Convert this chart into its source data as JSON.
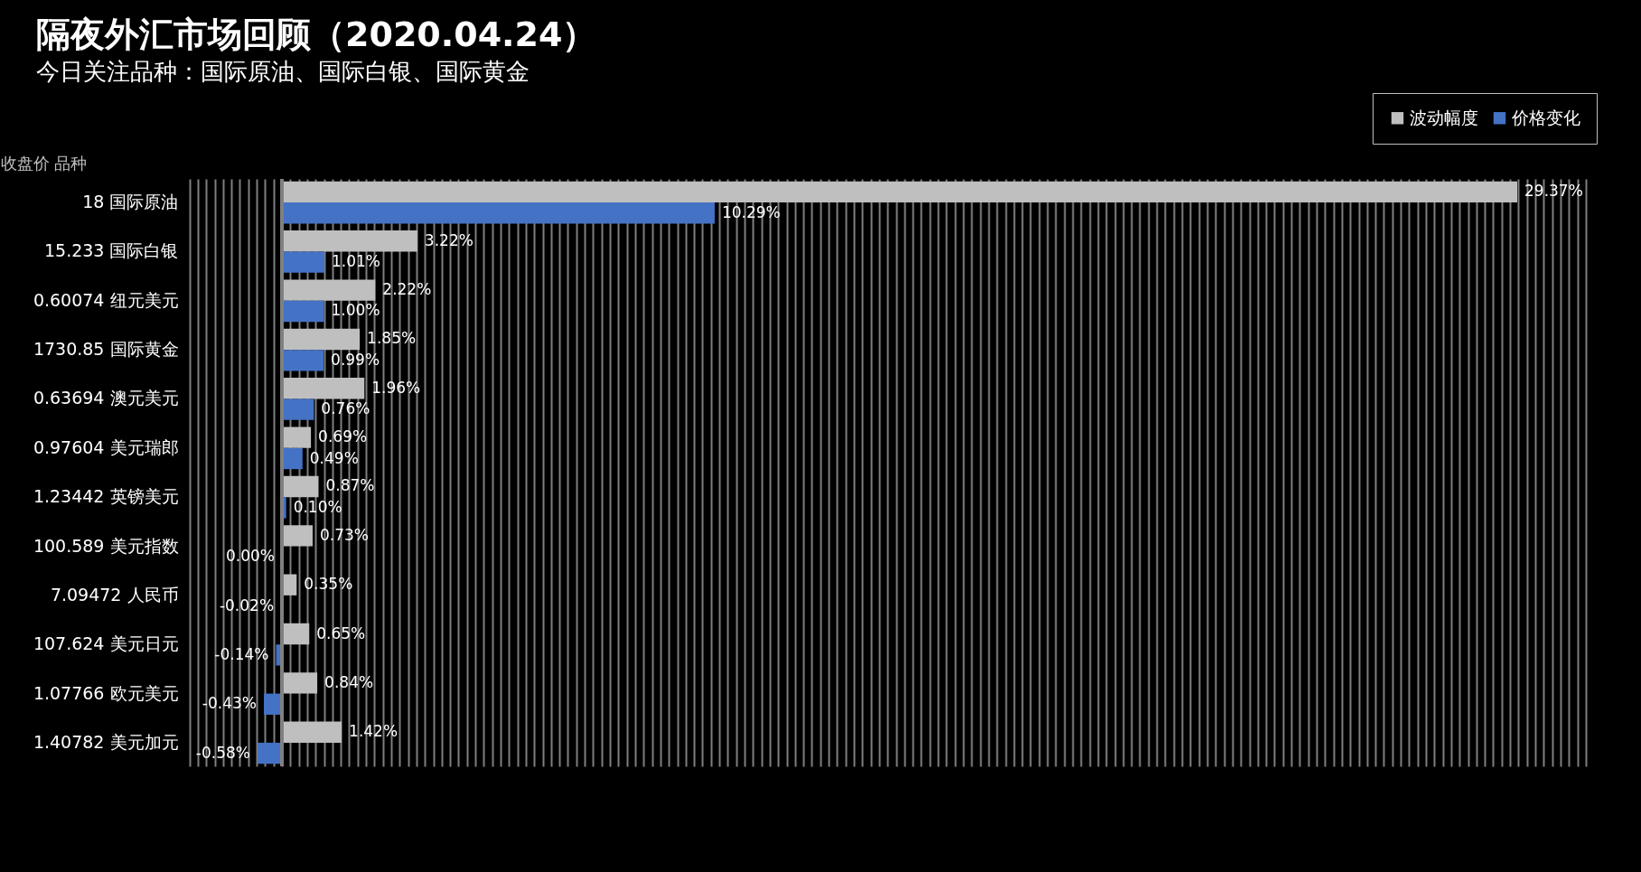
{
  "chart_data": {
    "type": "bar",
    "orientation": "horizontal",
    "title": "隔夜外汇市场回顾（2020.04.24）",
    "subtitle": "今日关注品种：国际原油、国际白银、国际黄金",
    "ylabel": "收盘价  品种",
    "categories": [
      "18  国际原油",
      "15.233  国际白银",
      "0.60074  纽元美元",
      "1730.85  国际黄金",
      "0.63694  澳元美元",
      "0.97604  美元瑞郎",
      "1.23442  英镑美元",
      "100.589  美元指数",
      "7.09472  人民币",
      "107.624  美元日元",
      "1.07766  欧元美元",
      "1.40782  美元加元"
    ],
    "series": [
      {
        "name": "波动幅度",
        "color": "#bfbfbf",
        "values": [
          29.37,
          3.22,
          2.22,
          1.85,
          1.96,
          0.69,
          0.87,
          0.73,
          0.35,
          0.65,
          0.84,
          1.42
        ],
        "value_labels": [
          "29.37%",
          "3.22%",
          "2.22%",
          "1.85%",
          "1.96%",
          "0.69%",
          "0.87%",
          "0.73%",
          "0.35%",
          "0.65%",
          "0.84%",
          "1.42%"
        ]
      },
      {
        "name": "价格变化",
        "color": "#4472c4",
        "values": [
          10.29,
          1.01,
          1.0,
          0.99,
          0.76,
          0.49,
          0.1,
          0.0,
          -0.02,
          -0.14,
          -0.43,
          -0.58
        ],
        "value_labels": [
          "10.29%",
          "1.01%",
          "1.00%",
          "0.99%",
          "0.76%",
          "0.49%",
          "0.10%",
          "0.00%",
          "-0.02%",
          "-0.14%",
          "-0.43%",
          "-0.58%"
        ]
      }
    ],
    "tick_labels": "y",
    "grid": "x",
    "legend": "top right",
    "ref_lines": [
      {
        "axis": "x",
        "value": 0,
        "color": "#808080"
      }
    ]
  }
}
